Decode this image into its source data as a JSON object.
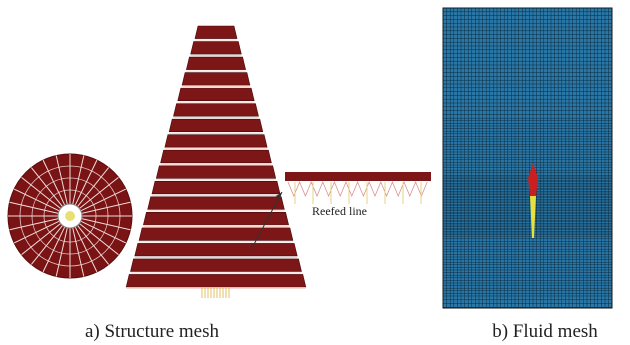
{
  "figure": {
    "reefed_label": "Reefed line",
    "captions": [
      "a) Structure mesh",
      "b) Fluid mesh"
    ]
  }
}
